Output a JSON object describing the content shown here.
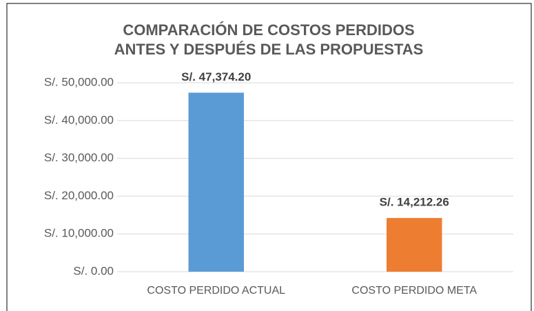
{
  "chart_data": {
    "type": "bar",
    "title": [
      "COMPARACIÓN DE COSTOS PERDIDOS",
      "ANTES Y DESPUÉS DE LAS PROPUESTAS"
    ],
    "categories": [
      "COSTO PERDIDO ACTUAL",
      "COSTO PERDIDO META"
    ],
    "values": [
      47374.2,
      14212.26
    ],
    "value_labels": [
      "S/. 47,374.20",
      "S/. 14,212.26"
    ],
    "colors": [
      "#5b9bd5",
      "#ed7d31"
    ],
    "ylim": [
      0,
      50000
    ],
    "yticks": [
      {
        "value": 0,
        "label": "S/. 0.00"
      },
      {
        "value": 10000,
        "label": "S/. 10,000.00"
      },
      {
        "value": 20000,
        "label": "S/. 20,000.00"
      },
      {
        "value": 30000,
        "label": "S/. 30,000.00"
      },
      {
        "value": 40000,
        "label": "S/. 40,000.00"
      },
      {
        "value": 50000,
        "label": "S/. 50,000.00"
      }
    ],
    "grid": true
  }
}
